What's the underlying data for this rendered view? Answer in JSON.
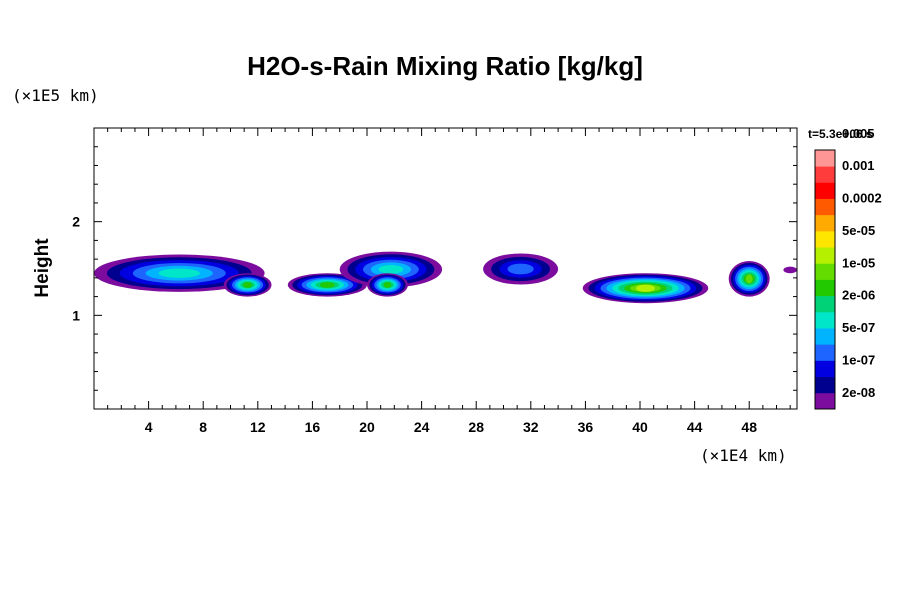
{
  "chart_data": {
    "type": "heatmap",
    "title": "H2O-s-Rain Mixing Ratio [kg/kg]",
    "ylabel": "Height",
    "y_unit": "(×1E5 km)",
    "x_unit": "(×1E4 km)",
    "time_label": "t=5.3e+06 s",
    "xlim": [
      0,
      51.5
    ],
    "ylim": [
      0,
      3
    ],
    "x_ticks": [
      4,
      8,
      12,
      16,
      20,
      24,
      28,
      32,
      36,
      40,
      44,
      48
    ],
    "x_tick_labels": [
      "4",
      "8",
      "12",
      "16",
      "20",
      "24",
      "28",
      "32",
      "36",
      "40",
      "44",
      "48"
    ],
    "y_ticks": [
      1,
      2
    ],
    "y_tick_labels": [
      "1",
      "2"
    ],
    "grid": false,
    "colorbar": {
      "colors": [
        "#7b0c9e",
        "#00008e",
        "#0000e0",
        "#1e64ff",
        "#00b4ff",
        "#00e6c8",
        "#00d278",
        "#22c800",
        "#64dc00",
        "#b4f000",
        "#ffe600",
        "#ffaa00",
        "#ff5a00",
        "#ff0000",
        "#ff3c3c",
        "#ff9696"
      ],
      "labels": [
        "2e-08",
        "1e-07",
        "5e-07",
        "2e-06",
        "1e-05",
        "5e-05",
        "0.0002",
        "0.001",
        "0.005"
      ]
    },
    "cloud_bands": [
      {
        "x": [
          0,
          12.5
        ],
        "y": [
          1.25,
          1.65
        ],
        "peak_level": 5
      },
      {
        "x": [
          9.5,
          13
        ],
        "y": [
          1.2,
          1.45
        ],
        "peak_level": 7
      },
      {
        "x": [
          14.2,
          20
        ],
        "y": [
          1.2,
          1.45
        ],
        "peak_level": 7
      },
      {
        "x": [
          18,
          25.5
        ],
        "y": [
          1.3,
          1.68
        ],
        "peak_level": 5
      },
      {
        "x": [
          20,
          23
        ],
        "y": [
          1.2,
          1.45
        ],
        "peak_level": 7
      },
      {
        "x": [
          28.5,
          34
        ],
        "y": [
          1.33,
          1.66
        ],
        "peak_level": 3
      },
      {
        "x": [
          35.8,
          45
        ],
        "y": [
          1.13,
          1.45
        ],
        "peak_level": 9
      },
      {
        "x": [
          46.5,
          49.5
        ],
        "y": [
          1.2,
          1.58
        ],
        "peak_level": 8
      },
      {
        "x": [
          50.5,
          51.5
        ],
        "y": [
          1.45,
          1.52
        ],
        "peak_level": 0
      }
    ]
  }
}
